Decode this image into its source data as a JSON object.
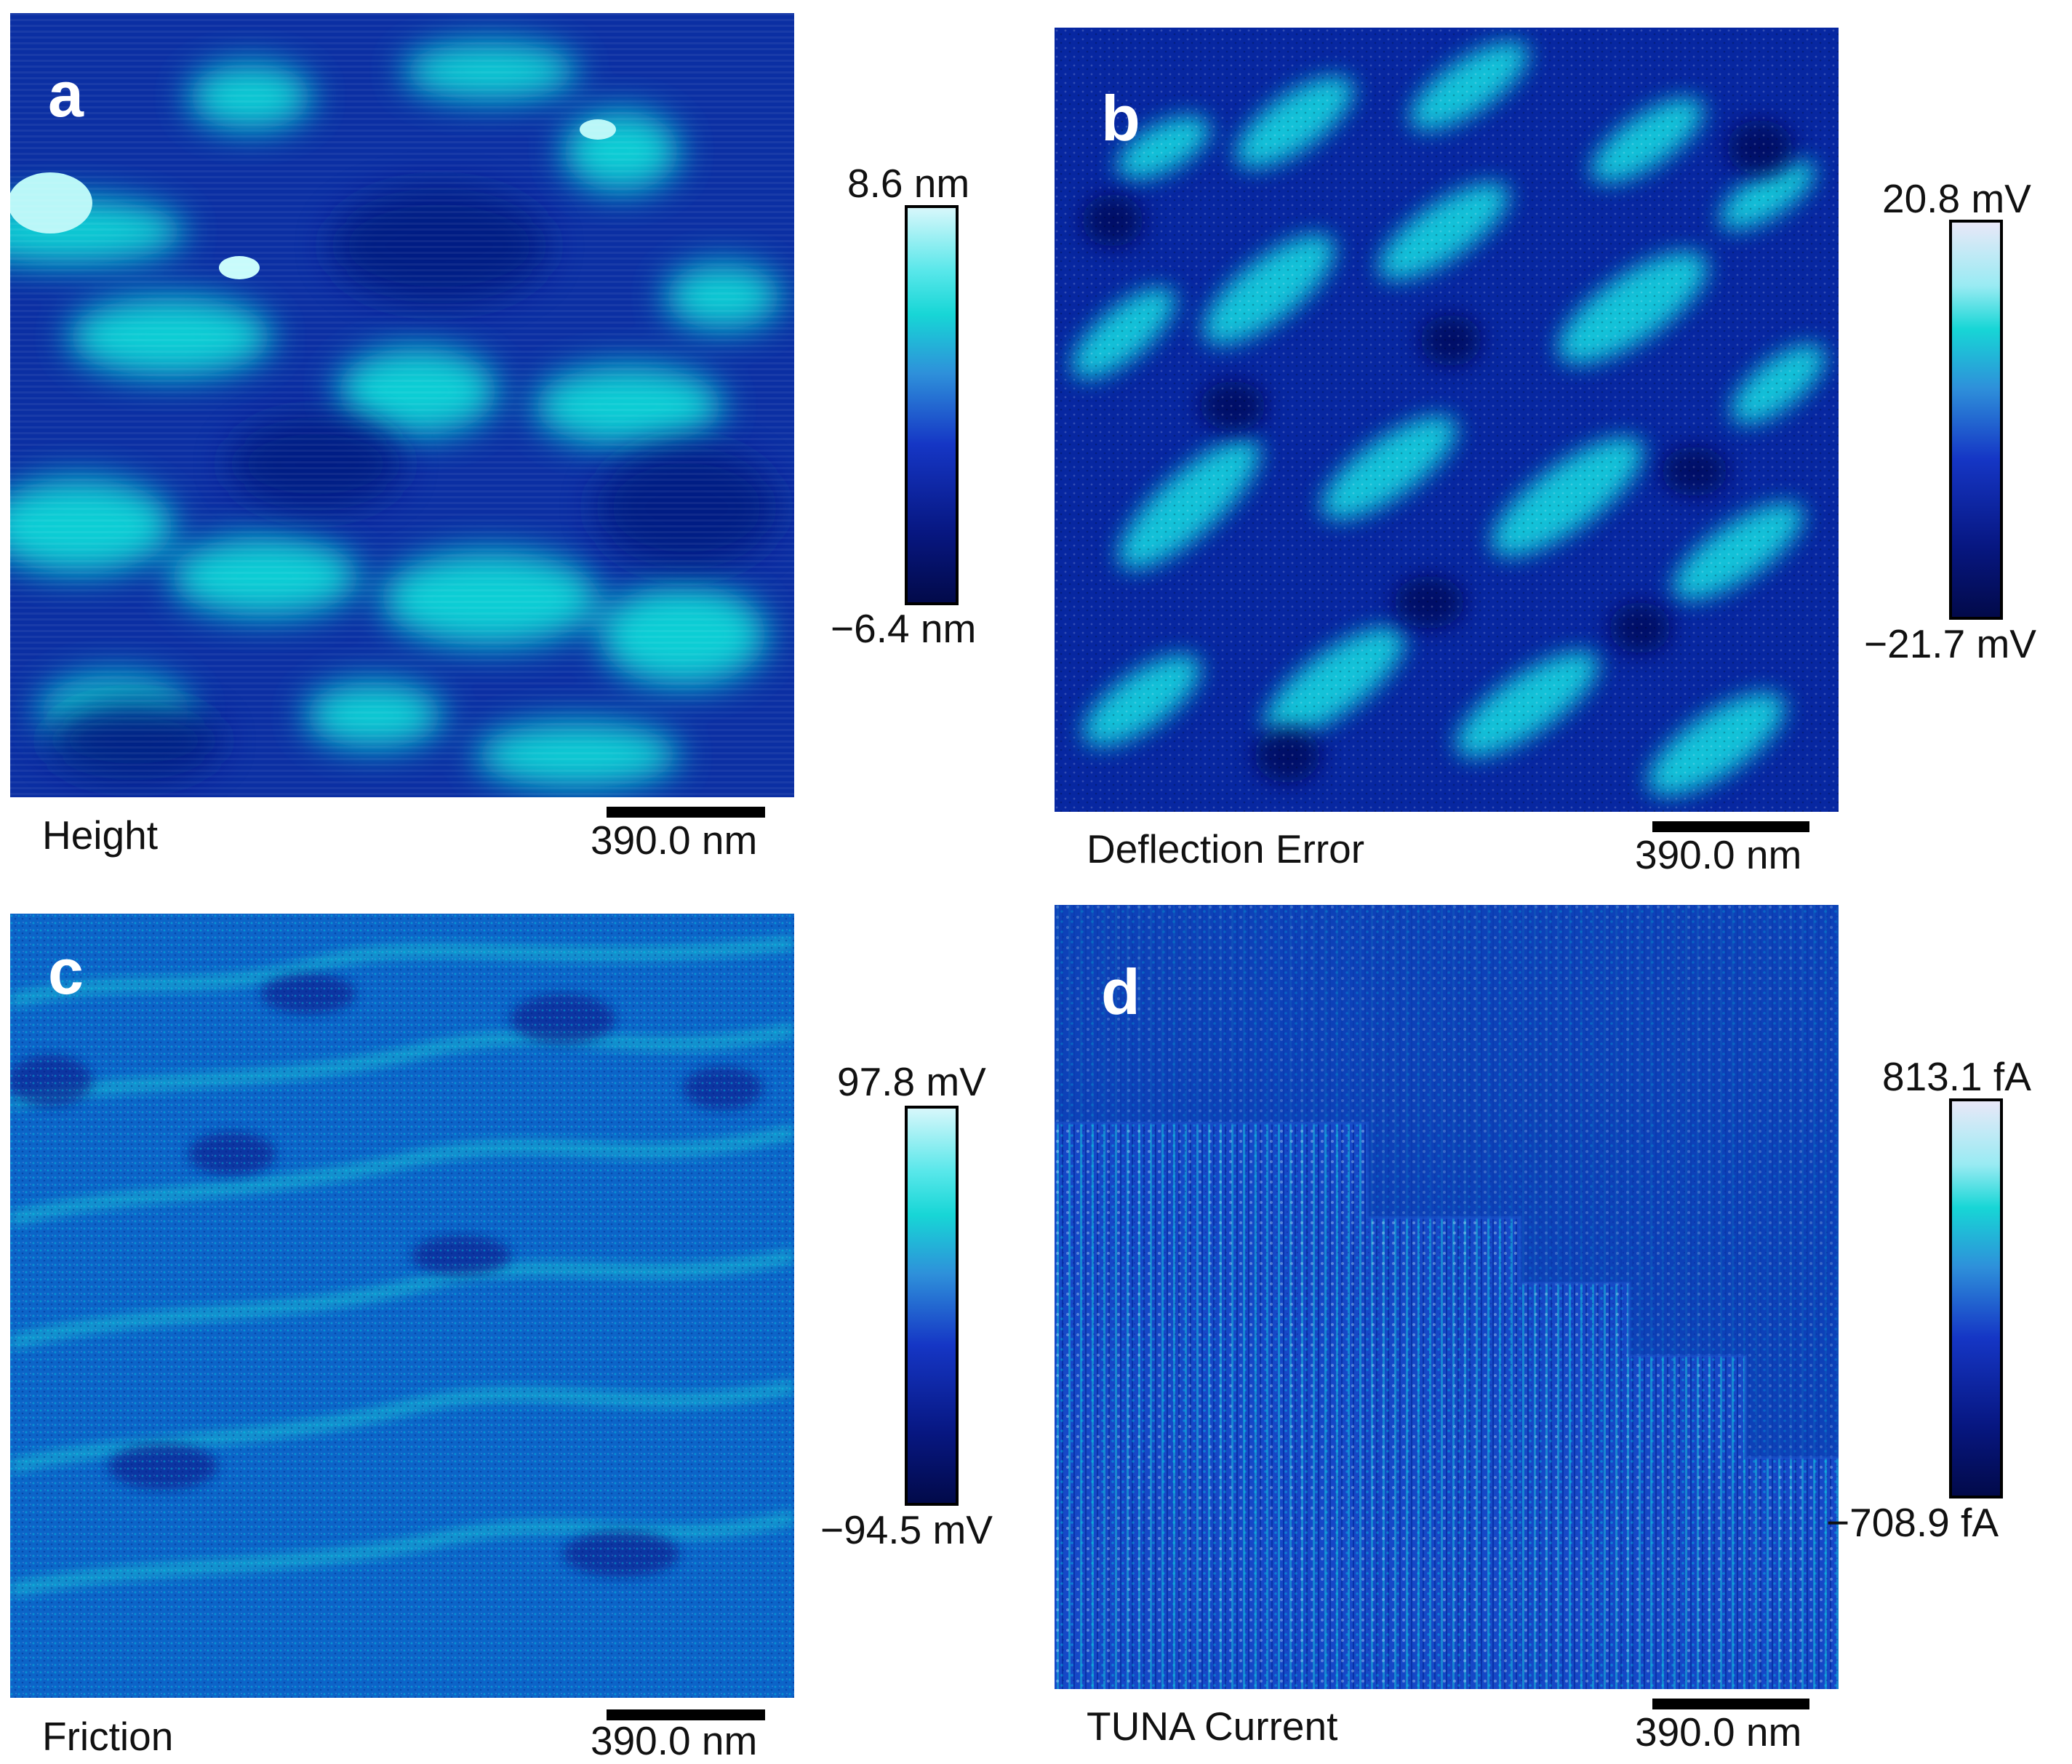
{
  "panels": [
    {
      "letter": "a",
      "channel": "Height",
      "scale_bar": "390.0 nm",
      "range_max": "8.6 nm",
      "range_min": "−6.4 nm"
    },
    {
      "letter": "b",
      "channel": "Deflection Error",
      "scale_bar": "390.0 nm",
      "range_max": "20.8 mV",
      "range_min": "−21.7 mV"
    },
    {
      "letter": "c",
      "channel": "Friction",
      "scale_bar": "390.0 nm",
      "range_max": "97.8 mV",
      "range_min": "−94.5 mV"
    },
    {
      "letter": "d",
      "channel": "TUNA Current",
      "scale_bar": "390.0 nm",
      "range_max": "813.1 fA",
      "range_min": "−708.9 fA"
    }
  ],
  "colors": {
    "dark_navy": "#020a4a",
    "deep_blue": "#071782",
    "blue": "#1536c5",
    "cyan": "#17d6d6",
    "light_cyan": "#d7f7fb"
  }
}
